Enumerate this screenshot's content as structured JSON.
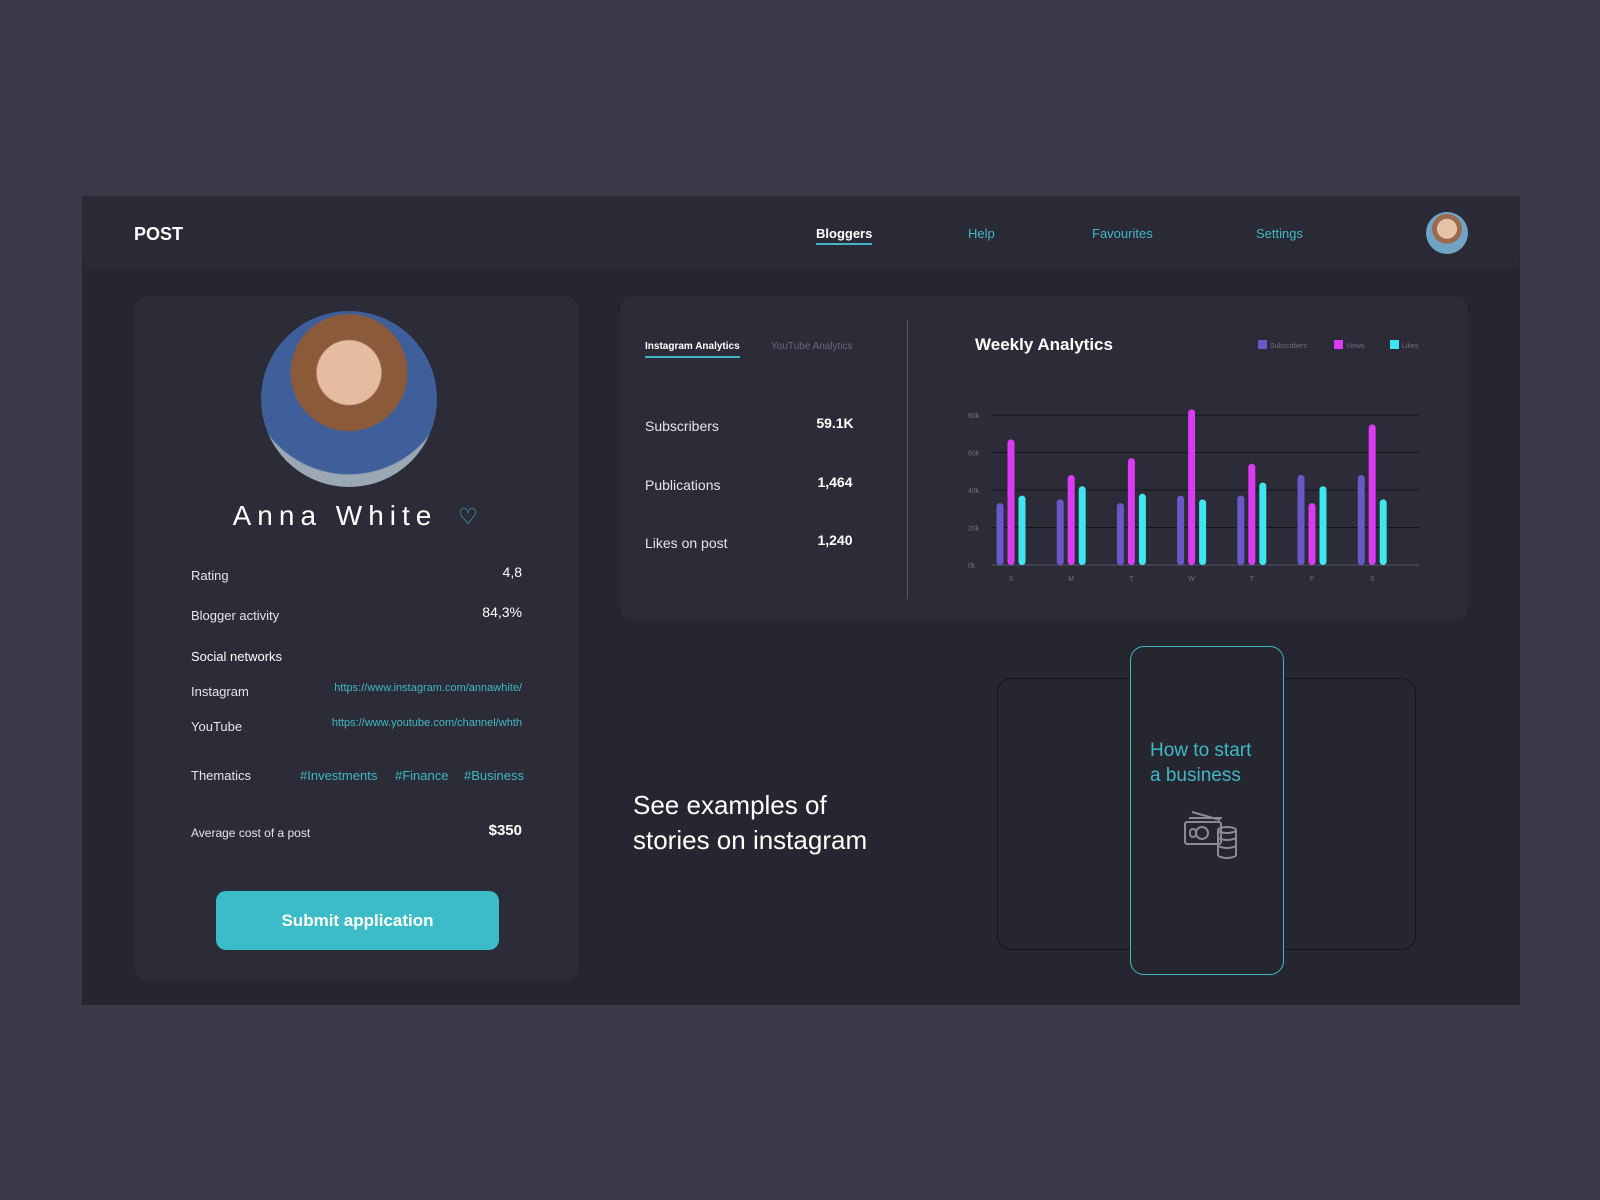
{
  "header": {
    "logo": "POST",
    "nav": [
      "Bloggers",
      "Help",
      "Favourites",
      "Settings"
    ]
  },
  "profile": {
    "name": "Anna White",
    "rows": [
      [
        "Rating",
        "4,8"
      ],
      [
        "Blogger activity",
        "84,3%"
      ]
    ],
    "social_title": "Social networks",
    "social": [
      [
        "Instagram",
        "https://www.instagram.com/annawhite/"
      ],
      [
        "YouTube",
        "https://www.youtube.com/channel/whth"
      ]
    ],
    "thematics_label": "Thematics",
    "thematics": [
      "#Investments",
      "#Finance",
      "#Business"
    ],
    "cost_label": "Average cost of a post",
    "cost": "$350",
    "button": "Submit application"
  },
  "analytics": {
    "tabs": [
      "Instagram Analytics",
      "YouTube Analytics"
    ],
    "stats": [
      [
        "Subscribers",
        "59.1K"
      ],
      [
        "Publications",
        "1,464"
      ],
      [
        "Likes on post",
        "1,240"
      ]
    ]
  },
  "chart_data": {
    "type": "bar",
    "title": "Weekly Analytics",
    "categories": [
      "S",
      "M",
      "T",
      "W",
      "T",
      "F",
      "S"
    ],
    "series": [
      {
        "name": "Subscribers",
        "color": "#6a58c8",
        "values": [
          33000,
          35000,
          33000,
          37000,
          37000,
          48000,
          48000
        ]
      },
      {
        "name": "Views",
        "color": "#d93af2",
        "values": [
          67000,
          48000,
          57000,
          83000,
          54000,
          33000,
          75000
        ]
      },
      {
        "name": "Likes",
        "color": "#3ee6f0",
        "values": [
          37000,
          42000,
          38000,
          35000,
          44000,
          42000,
          35000
        ]
      }
    ],
    "ylim": [
      0,
      85000
    ],
    "yticks": [
      {
        "value": 0,
        "label": "0k"
      },
      {
        "value": 20000,
        "label": "20k"
      },
      {
        "value": 40000,
        "label": "40k"
      },
      {
        "value": 60000,
        "label": "60k"
      },
      {
        "value": 80000,
        "label": "80k"
      }
    ],
    "grid": true,
    "legend": "top-right"
  },
  "stories": {
    "text": "See examples of stories on instagram",
    "card": "How to start a business"
  }
}
